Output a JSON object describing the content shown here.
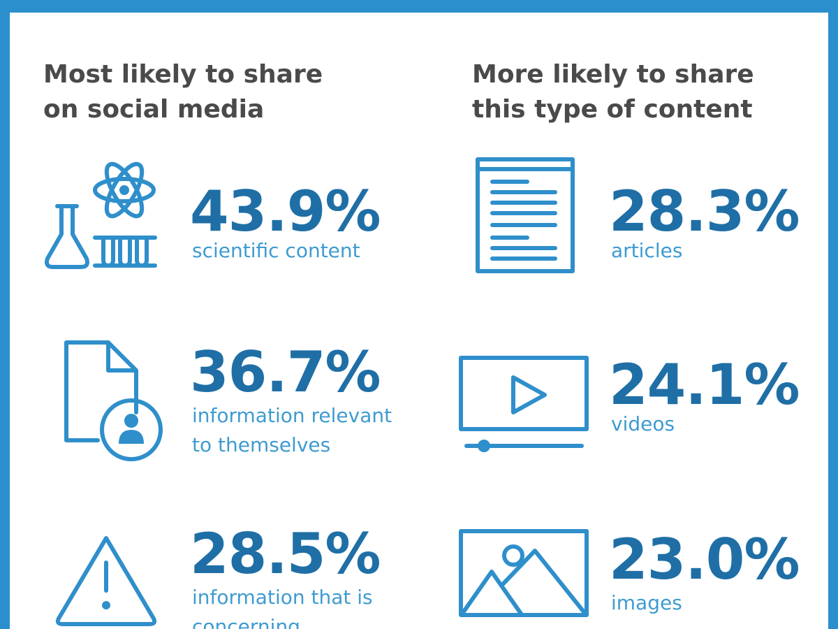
{
  "left": {
    "heading": [
      "Most likely to share",
      "on social media"
    ],
    "items": [
      {
        "value": "43.9%",
        "label": [
          "scientific content"
        ]
      },
      {
        "value": "36.7%",
        "label": [
          "information relevant",
          "to themselves"
        ]
      },
      {
        "value": "28.5%",
        "label": [
          "information that is",
          "concerning"
        ]
      }
    ]
  },
  "right": {
    "heading": [
      "More likely to share",
      "this type of content"
    ],
    "items": [
      {
        "value": "28.3%",
        "label": [
          "articles"
        ]
      },
      {
        "value": "24.1%",
        "label": [
          "videos"
        ]
      },
      {
        "value": "23.0%",
        "label": [
          "images"
        ]
      }
    ]
  }
}
